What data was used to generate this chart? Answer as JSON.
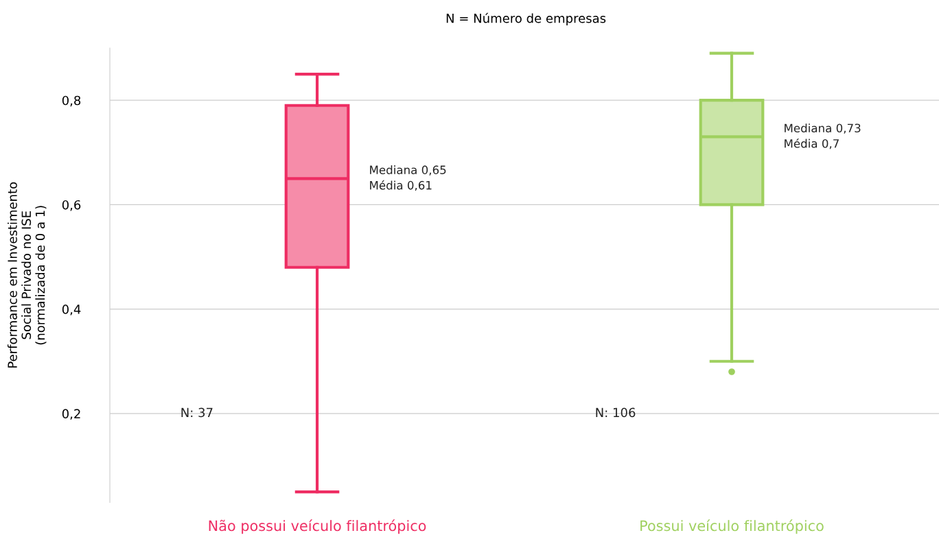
{
  "chart_data": {
    "type": "box",
    "title": "N = Número de empresas",
    "ylabel": "Performance em Investimento\nSocial Privado no ISE\n(normalizada de 0 a 1)",
    "categories": [
      "Não possui veículo filantrópico",
      "Possui veículo filantrópico"
    ],
    "colors": [
      "#ee2d63",
      "#9fd05f"
    ],
    "boxes": [
      {
        "low": 0.05,
        "q1": 0.48,
        "median": 0.65,
        "q3": 0.79,
        "high": 0.85
      },
      {
        "low": 0.3,
        "q1": 0.6,
        "median": 0.73,
        "q3": 0.8,
        "high": 0.89,
        "outliers": [
          0.28
        ]
      }
    ],
    "annotations": [
      "N: 37",
      "N: 106",
      "Mediana 0,65\nMédia 0,61",
      "Mediana 0,73\nMédia 0,7"
    ],
    "ylim": [
      0.03,
      0.9
    ],
    "yticks": [
      {
        "value": 0.2,
        "label": "0,2"
      },
      {
        "value": 0.4,
        "label": "0,4"
      },
      {
        "value": 0.6,
        "label": "0,6"
      },
      {
        "value": 0.8,
        "label": "0,8"
      }
    ],
    "grid": "y"
  }
}
